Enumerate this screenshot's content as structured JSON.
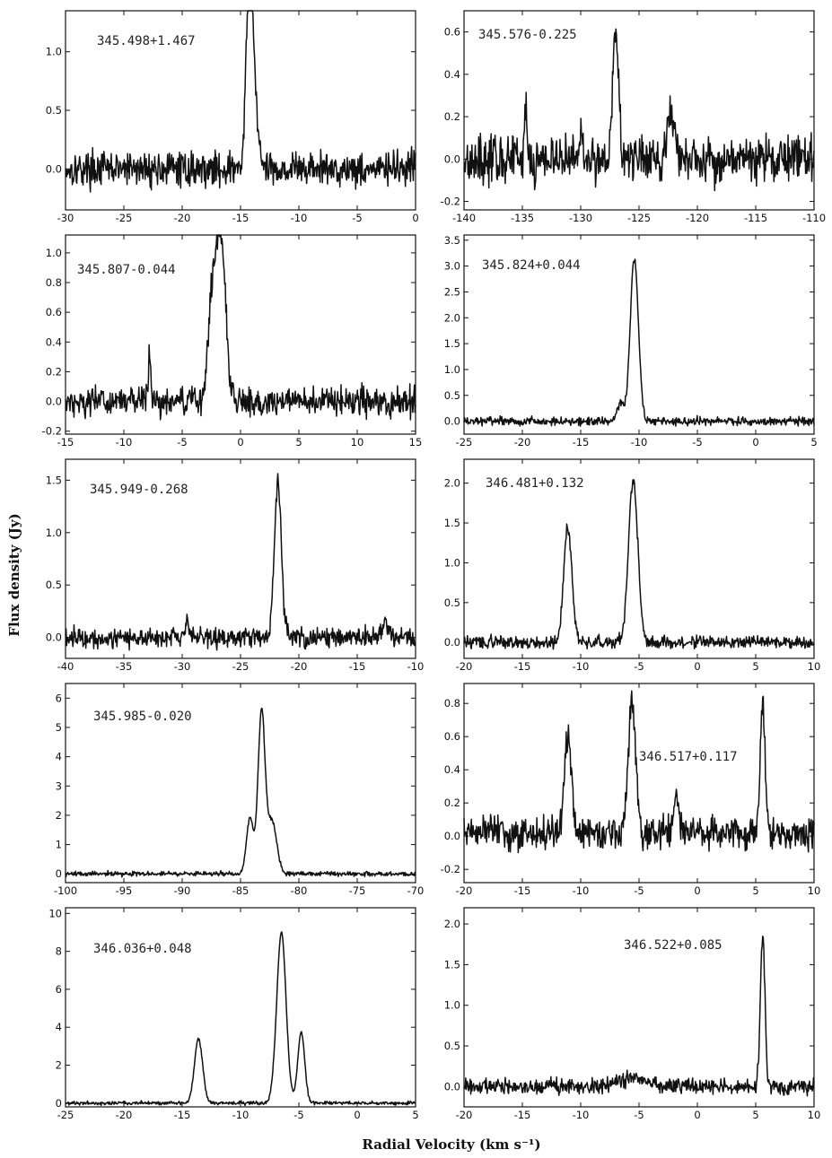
{
  "figure": {
    "xlabel": "Radial   Velocity   (km s⁻¹)",
    "ylabel": "Flux   density   (Jy)"
  },
  "chart_data": [
    {
      "type": "line",
      "source": "345.498+1.467",
      "xlim": [
        -30,
        0
      ],
      "ylim": [
        -0.35,
        1.35
      ],
      "xticks": [
        "-30",
        "-25",
        "-20",
        "-15",
        "-10",
        "-5",
        "0"
      ],
      "yticks": [
        "0.0",
        "0.5",
        "1.0"
      ],
      "series": [
        {
          "noise": 0.09,
          "baseline": 0,
          "peaks": [
            {
              "v": -14.3,
              "amp": 1.22,
              "w": 0.25
            },
            {
              "v": -13.9,
              "amp": 0.85,
              "w": 0.3
            }
          ]
        }
      ]
    },
    {
      "type": "line",
      "source": "345.576-0.225",
      "xlim": [
        -140,
        -110
      ],
      "ylim": [
        -0.24,
        0.7
      ],
      "xticks": [
        "-140",
        "-135",
        "-130",
        "-125",
        "-120",
        "-115",
        "-110"
      ],
      "yticks": [
        "-0.2",
        "0.0",
        "0.2",
        "0.4",
        "0.6"
      ],
      "series": [
        {
          "noise": 0.07,
          "baseline": 0,
          "peaks": [
            {
              "v": -127,
              "amp": 0.62,
              "w": 0.25
            },
            {
              "v": -122.3,
              "amp": 0.22,
              "w": 0.3
            },
            {
              "v": -134.7,
              "amp": 0.2,
              "w": 0.12
            },
            {
              "v": -130,
              "amp": 0.15,
              "w": 0.12
            }
          ]
        }
      ]
    },
    {
      "type": "line",
      "source": "345.807-0.044",
      "xlim": [
        -15,
        15
      ],
      "ylim": [
        -0.22,
        1.12
      ],
      "xticks": [
        "-15",
        "-10",
        "-5",
        "0",
        "5",
        "10",
        "15"
      ],
      "yticks": [
        "-0.2",
        "0.0",
        "0.2",
        "0.4",
        "0.6",
        "0.8",
        "1.0"
      ],
      "series": [
        {
          "noise": 0.06,
          "baseline": 0,
          "peaks": [
            {
              "v": -2,
              "amp": 0.88,
              "w": 0.45
            },
            {
              "v": -1.5,
              "amp": 0.55,
              "w": 0.35
            },
            {
              "v": -2.6,
              "amp": 0.3,
              "w": 0.3
            },
            {
              "v": -7.8,
              "amp": 0.3,
              "w": 0.12
            }
          ]
        }
      ]
    },
    {
      "type": "line",
      "source": "345.824+0.044",
      "xlim": [
        -25,
        5
      ],
      "ylim": [
        -0.25,
        3.6
      ],
      "xticks": [
        "-25",
        "-20",
        "-15",
        "-10",
        "-5",
        "0",
        "5"
      ],
      "yticks": [
        "0.0",
        "0.5",
        "1.0",
        "1.5",
        "2.0",
        "2.5",
        "3.0",
        "3.5"
      ],
      "series": [
        {
          "noise": 0.05,
          "baseline": 0,
          "peaks": [
            {
              "v": -10.4,
              "amp": 3.15,
              "w": 0.35
            },
            {
              "v": -11.6,
              "amp": 0.35,
              "w": 0.3
            }
          ]
        }
      ]
    },
    {
      "type": "line",
      "source": "345.949-0.268",
      "xlim": [
        -40,
        -10
      ],
      "ylim": [
        -0.2,
        1.7
      ],
      "xticks": [
        "-40",
        "-35",
        "-30",
        "-25",
        "-20",
        "-15",
        "-10"
      ],
      "yticks": [
        "0.0",
        "0.5",
        "1.0",
        "1.5"
      ],
      "series": [
        {
          "noise": 0.06,
          "baseline": 0,
          "peaks": [
            {
              "v": -21.8,
              "amp": 1.5,
              "w": 0.3
            },
            {
              "v": -12.5,
              "amp": 0.15,
              "w": 0.3
            },
            {
              "v": -29.6,
              "amp": 0.18,
              "w": 0.12
            }
          ]
        }
      ]
    },
    {
      "type": "line",
      "source": "346.481+0.132",
      "xlim": [
        -20,
        10
      ],
      "ylim": [
        -0.2,
        2.3
      ],
      "xticks": [
        "-20",
        "-15",
        "-10",
        "-5",
        "0",
        "5",
        "10"
      ],
      "yticks": [
        "0.0",
        "0.5",
        "1.0",
        "1.5",
        "2.0"
      ],
      "series": [
        {
          "noise": 0.05,
          "baseline": 0,
          "peaks": [
            {
              "v": -11.1,
              "amp": 1.45,
              "w": 0.35
            },
            {
              "v": -5.5,
              "amp": 2.05,
              "w": 0.4
            }
          ]
        }
      ]
    },
    {
      "type": "line",
      "source": "345.985-0.020",
      "xlim": [
        -100,
        -70
      ],
      "ylim": [
        -0.3,
        6.5
      ],
      "xticks": [
        "-100",
        "-95",
        "-90",
        "-85",
        "-80",
        "-75",
        "-70"
      ],
      "yticks": [
        "0",
        "1",
        "2",
        "3",
        "4",
        "5",
        "6"
      ],
      "series": [
        {
          "noise": 0.05,
          "baseline": 0,
          "peaks": [
            {
              "v": -83.2,
              "amp": 5.5,
              "w": 0.3
            },
            {
              "v": -84.2,
              "amp": 1.9,
              "w": 0.3
            },
            {
              "v": -82.3,
              "amp": 1.8,
              "w": 0.4
            }
          ]
        }
      ]
    },
    {
      "type": "line",
      "source": "346.517+0.117",
      "xlim": [
        -20,
        10
      ],
      "ylim": [
        -0.28,
        0.92
      ],
      "xticks": [
        "-20",
        "-15",
        "-10",
        "-5",
        "0",
        "5",
        "10"
      ],
      "yticks": [
        "-0.2",
        "0.0",
        "0.2",
        "0.4",
        "0.6",
        "0.8"
      ],
      "series": [
        {
          "noise": 0.06,
          "baseline": 0.02,
          "peaks": [
            {
              "v": -11.1,
              "amp": 0.58,
              "w": 0.3
            },
            {
              "v": -5.6,
              "amp": 0.8,
              "w": 0.3
            },
            {
              "v": -1.8,
              "amp": 0.25,
              "w": 0.2
            },
            {
              "v": 5.6,
              "amp": 0.78,
              "w": 0.2
            }
          ]
        }
      ]
    },
    {
      "type": "line",
      "source": "346.036+0.048",
      "xlim": [
        -25,
        5
      ],
      "ylim": [
        -0.2,
        10.3
      ],
      "xticks": [
        "-25",
        "-20",
        "-15",
        "-10",
        "-5",
        "0",
        "5"
      ],
      "yticks": [
        "0",
        "2",
        "4",
        "6",
        "8",
        "10"
      ],
      "series": [
        {
          "noise": 0.06,
          "baseline": 0,
          "peaks": [
            {
              "v": -13.6,
              "amp": 3.4,
              "w": 0.35
            },
            {
              "v": -6.5,
              "amp": 9.0,
              "w": 0.4
            },
            {
              "v": -4.8,
              "amp": 3.7,
              "w": 0.3
            }
          ]
        }
      ]
    },
    {
      "type": "line",
      "source": "346.522+0.085",
      "xlim": [
        -20,
        10
      ],
      "ylim": [
        -0.25,
        2.2
      ],
      "xticks": [
        "-20",
        "-15",
        "-10",
        "-5",
        "0",
        "5",
        "10"
      ],
      "yticks": [
        "0.0",
        "0.5",
        "1.0",
        "1.5",
        "2.0"
      ],
      "series": [
        {
          "noise": 0.06,
          "baseline": 0,
          "peaks": [
            {
              "v": 5.6,
              "amp": 1.85,
              "w": 0.2
            },
            {
              "v": -5.5,
              "amp": 0.12,
              "w": 1.2
            }
          ]
        }
      ]
    }
  ]
}
